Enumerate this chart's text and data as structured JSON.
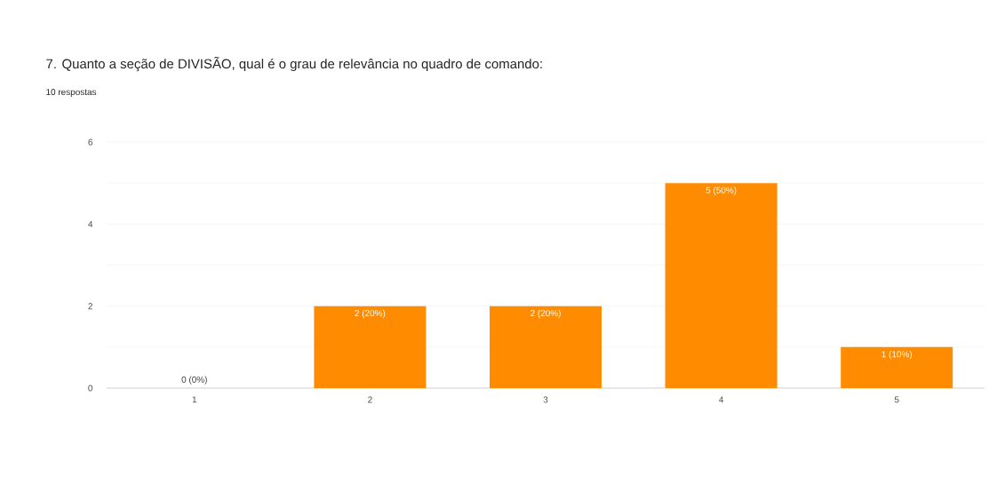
{
  "chart_data": {
    "type": "bar",
    "title": "7. Quanto a seção de DIVISÃO, qual é o grau de relevância no quadro de comando:",
    "subtitle": "10 respostas",
    "categories": [
      "1",
      "2",
      "3",
      "4",
      "5"
    ],
    "values": [
      0,
      2,
      2,
      5,
      1
    ],
    "value_labels": [
      "0 (0%)",
      "2 (20%)",
      "2 (20%)",
      "5 (50%)",
      "1 (10%)"
    ],
    "color": "#ff8c00",
    "ylim": [
      0,
      6
    ],
    "yticks": [
      0,
      {
        "value": 1,
        "label": null
      },
      2,
      {
        "value": 3,
        "label": null
      },
      4,
      {
        "value": 5,
        "label": null
      },
      6
    ],
    "grid": "y"
  }
}
